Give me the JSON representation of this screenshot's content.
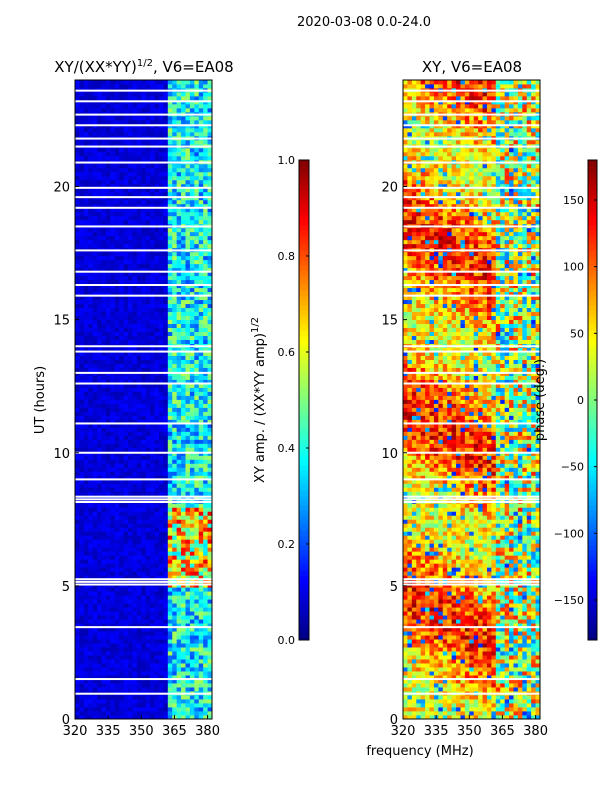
{
  "chart_data": {
    "suptitle": "2020-03-08 0.0-24.0",
    "type": "heatmap",
    "shared_xlabel": "frequency (MHz)",
    "panels": [
      {
        "id": "amp",
        "title_main": "XY/(XX*YY)",
        "title_sup": "1/2",
        "title_tail": ", V6=EA08",
        "ylabel": "UT (hours)",
        "xlim": [
          320,
          382
        ],
        "ylim": [
          0,
          24
        ],
        "xticks": [
          "320",
          "335",
          "350",
          "365",
          "380"
        ],
        "yticks": [
          "0",
          "5",
          "10",
          "15",
          "20"
        ],
        "colorbar": {
          "label_main": "XY amp. / (XX*YY amp)",
          "label_sup": "1/2",
          "range": [
            0.0,
            1.0
          ],
          "ticks": [
            "0.0",
            "0.2",
            "0.4",
            "0.6",
            "0.8",
            "1.0"
          ]
        }
      },
      {
        "id": "phase",
        "title_main": "XY, V6=EA08",
        "xlim": [
          320,
          382
        ],
        "ylim": [
          0,
          24
        ],
        "xticks": [
          "320",
          "335",
          "350",
          "365",
          "380"
        ],
        "yticks": [
          "0",
          "5",
          "10",
          "15",
          "20"
        ],
        "colorbar": {
          "label_main": "phase (deg.)",
          "range": [
            -180,
            180
          ],
          "ticks": [
            "−150",
            "−100",
            "−50",
            "0",
            "50",
            "100",
            "150"
          ]
        }
      }
    ],
    "flagged_gaps_ut": [
      0.95,
      1.5,
      3.45,
      5.05,
      5.15,
      5.25,
      8.15,
      8.25,
      8.35,
      9.0,
      10.0,
      11.1,
      12.6,
      13.0,
      13.8,
      14.0,
      15.9,
      16.3,
      16.8,
      17.6,
      18.5,
      19.2,
      19.6,
      19.95,
      20.9,
      21.5,
      21.8,
      22.3,
      22.7,
      23.2,
      23.6
    ]
  }
}
